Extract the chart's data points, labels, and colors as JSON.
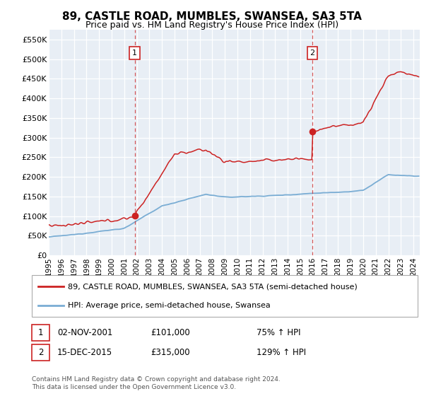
{
  "title": "89, CASTLE ROAD, MUMBLES, SWANSEA, SA3 5TA",
  "subtitle": "Price paid vs. HM Land Registry's House Price Index (HPI)",
  "xlim_start": 1995.0,
  "xlim_end": 2024.5,
  "ylim_min": 0,
  "ylim_max": 575000,
  "yticks": [
    0,
    50000,
    100000,
    150000,
    200000,
    250000,
    300000,
    350000,
    400000,
    450000,
    500000,
    550000
  ],
  "ytick_labels": [
    "£0",
    "£50K",
    "£100K",
    "£150K",
    "£200K",
    "£250K",
    "£300K",
    "£350K",
    "£400K",
    "£450K",
    "£500K",
    "£550K"
  ],
  "background_color": "#e8eef5",
  "grid_color": "#ffffff",
  "red_line_color": "#cc2222",
  "blue_line_color": "#7aadd4",
  "transaction1_x": 2001.84,
  "transaction1_y": 101000,
  "transaction1_label": "1",
  "transaction1_date": "02-NOV-2001",
  "transaction1_price": "£101,000",
  "transaction1_hpi": "75% ↑ HPI",
  "transaction2_x": 2015.96,
  "transaction2_y": 315000,
  "transaction2_label": "2",
  "transaction2_date": "15-DEC-2015",
  "transaction2_price": "£315,000",
  "transaction2_hpi": "129% ↑ HPI",
  "legend_line1": "89, CASTLE ROAD, MUMBLES, SWANSEA, SA3 5TA (semi-detached house)",
  "legend_line2": "HPI: Average price, semi-detached house, Swansea",
  "footer": "Contains HM Land Registry data © Crown copyright and database right 2024.\nThis data is licensed under the Open Government Licence v3.0."
}
